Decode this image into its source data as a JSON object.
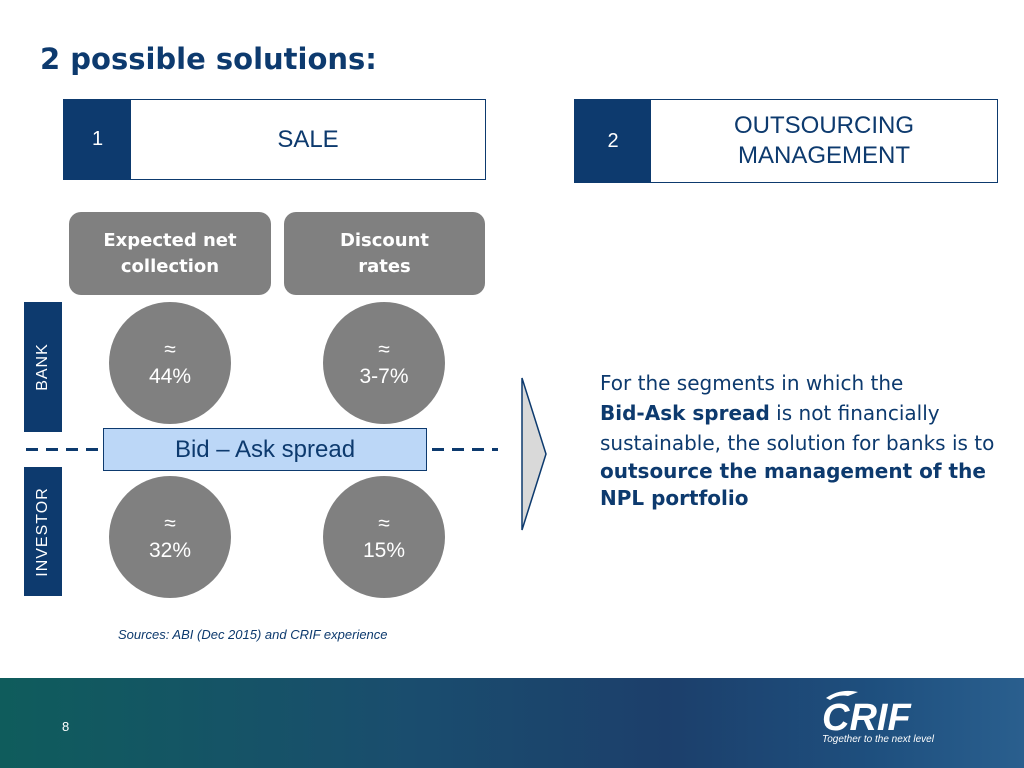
{
  "title": "2 possible solutions:",
  "solutions": [
    {
      "number": "1",
      "label": "SALE"
    },
    {
      "number": "2",
      "label_line1": "OUTSOURCING",
      "label_line2": "MANAGEMENT"
    }
  ],
  "headers": {
    "expected_line1": "Expected net",
    "expected_line2": "collection",
    "discount_line1": "Discount",
    "discount_line2": "rates"
  },
  "side_labels": {
    "bank": "BANK",
    "investor": "INVESTOR"
  },
  "circles": {
    "approx_symbol": "≈",
    "bank_expected": "44%",
    "bank_discount": "3-7%",
    "investor_expected": "32%",
    "investor_discount": "15%"
  },
  "spread_label": "Bid – Ask spread",
  "description": {
    "part1": "For the segments in which the",
    "bold1": "Bid-Ask spread",
    "part2": " is not financially sustainable, the solution for banks is to",
    "bold2": "outsource the management of the NPL portfolio"
  },
  "sources": "Sources: ABI (Dec 2015) and CRIF experience",
  "footer": {
    "page_number": "8",
    "logo_text": "CRIF",
    "tagline": "Together to the next level"
  },
  "colors": {
    "primary": "#0d3a6e",
    "gray": "#808080",
    "spread_fill": "#bcd7f7"
  }
}
